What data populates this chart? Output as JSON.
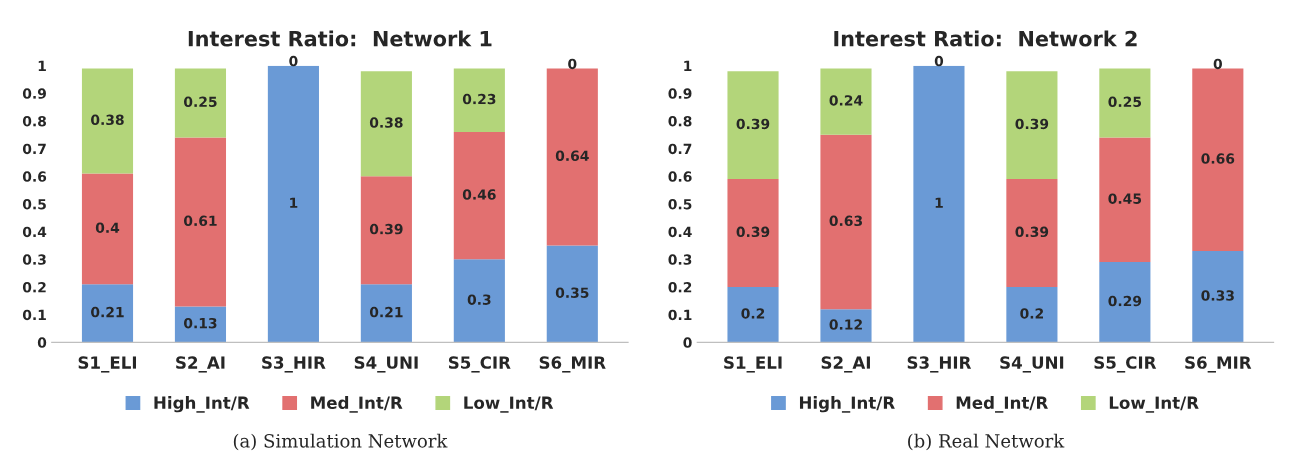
{
  "chart_data": [
    {
      "type": "bar",
      "title": "Interest Ratio:  Network 1",
      "stacked": true,
      "legend": "bottom",
      "categories": [
        "S1_ELI",
        "S2_AI",
        "S3_HIR",
        "S4_UNI",
        "S5_CIR",
        "S6_MIR"
      ],
      "series": [
        {
          "name": "High_Int/R",
          "color": "#6a9ad6",
          "values": [
            0.21,
            0.13,
            1,
            0.21,
            0.3,
            0.35
          ],
          "value_labels": [
            "0.21",
            "0.13",
            "1",
            "0.21",
            "0.3",
            "0.35"
          ]
        },
        {
          "name": "Med_Int/R",
          "color": "#e27070",
          "values": [
            0.4,
            0.61,
            0,
            0.39,
            0.46,
            0.64
          ],
          "value_labels": [
            "0.4",
            "0.61",
            null,
            "0.39",
            "0.46",
            "0.64"
          ]
        },
        {
          "name": "Low_Int/R",
          "color": "#b3d57a",
          "values": [
            0.38,
            0.25,
            0,
            0.38,
            0.23,
            0
          ],
          "value_labels": [
            "0.38",
            "0.25",
            "0",
            "0.38",
            "0.23",
            "0"
          ]
        }
      ],
      "ylim": [
        0,
        1
      ],
      "yticks": [
        0,
        0.1,
        0.2,
        0.3,
        0.4,
        0.5,
        0.6,
        0.7,
        0.8,
        0.9,
        1
      ],
      "grid": false,
      "annotations": [
        "(a) Simulation Network"
      ]
    },
    {
      "type": "bar",
      "title": "Interest Ratio:  Network 2",
      "stacked": true,
      "legend": "bottom",
      "categories": [
        "S1_ELI",
        "S2_AI",
        "S3_HIR",
        "S4_UNI",
        "S5_CIR",
        "S6_MIR"
      ],
      "series": [
        {
          "name": "High_Int/R",
          "color": "#6a9ad6",
          "values": [
            0.2,
            0.12,
            1,
            0.2,
            0.29,
            0.33
          ],
          "value_labels": [
            "0.2",
            "0.12",
            "1",
            "0.2",
            "0.29",
            "0.33"
          ]
        },
        {
          "name": "Med_Int/R",
          "color": "#e27070",
          "values": [
            0.39,
            0.63,
            0,
            0.39,
            0.45,
            0.66
          ],
          "value_labels": [
            "0.39",
            "0.63",
            null,
            "0.39",
            "0.45",
            "0.66"
          ]
        },
        {
          "name": "Low_Int/R",
          "color": "#b3d57a",
          "values": [
            0.39,
            0.24,
            0,
            0.39,
            0.25,
            0
          ],
          "value_labels": [
            "0.39",
            "0.24",
            "0",
            "0.39",
            "0.25",
            "0"
          ]
        }
      ],
      "ylim": [
        0,
        1
      ],
      "yticks": [
        0,
        0.1,
        0.2,
        0.3,
        0.4,
        0.5,
        0.6,
        0.7,
        0.8,
        0.9,
        1
      ],
      "grid": false,
      "annotations": [
        "(b) Real Network"
      ]
    }
  ]
}
